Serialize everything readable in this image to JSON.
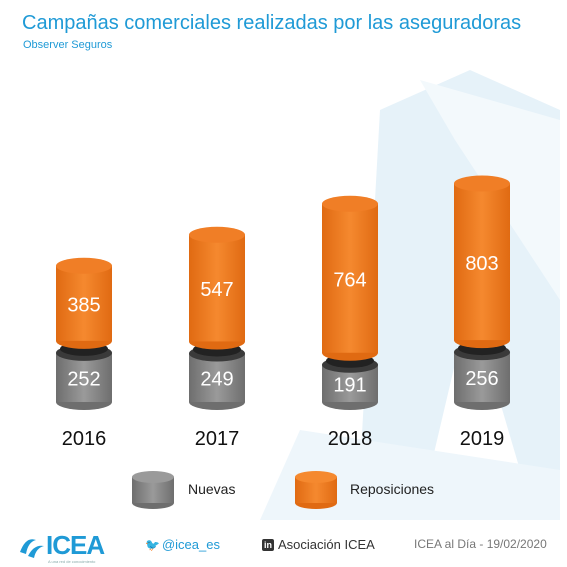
{
  "title": "Campañas comerciales realizadas por las aseguradoras",
  "subtitle": "Observer Seguros",
  "chart_data": {
    "type": "bar",
    "stacked": true,
    "categories": [
      "2016",
      "2017",
      "2018",
      "2019"
    ],
    "series": [
      {
        "name": "Nuevas",
        "values": [
          252,
          249,
          191,
          256
        ],
        "color": "#8a8a8a"
      },
      {
        "name": "Reposiciones",
        "values": [
          385,
          547,
          764,
          803
        ],
        "color": "#f07e26"
      }
    ],
    "legend_position": "bottom"
  },
  "footer": {
    "logo_text": "ICEA",
    "logo_tag": "A una red de conocimiento",
    "twitter": "@icea_es",
    "linkedin": "Asociación ICEA",
    "source_date": "ICEA al Día - 19/02/2020"
  }
}
